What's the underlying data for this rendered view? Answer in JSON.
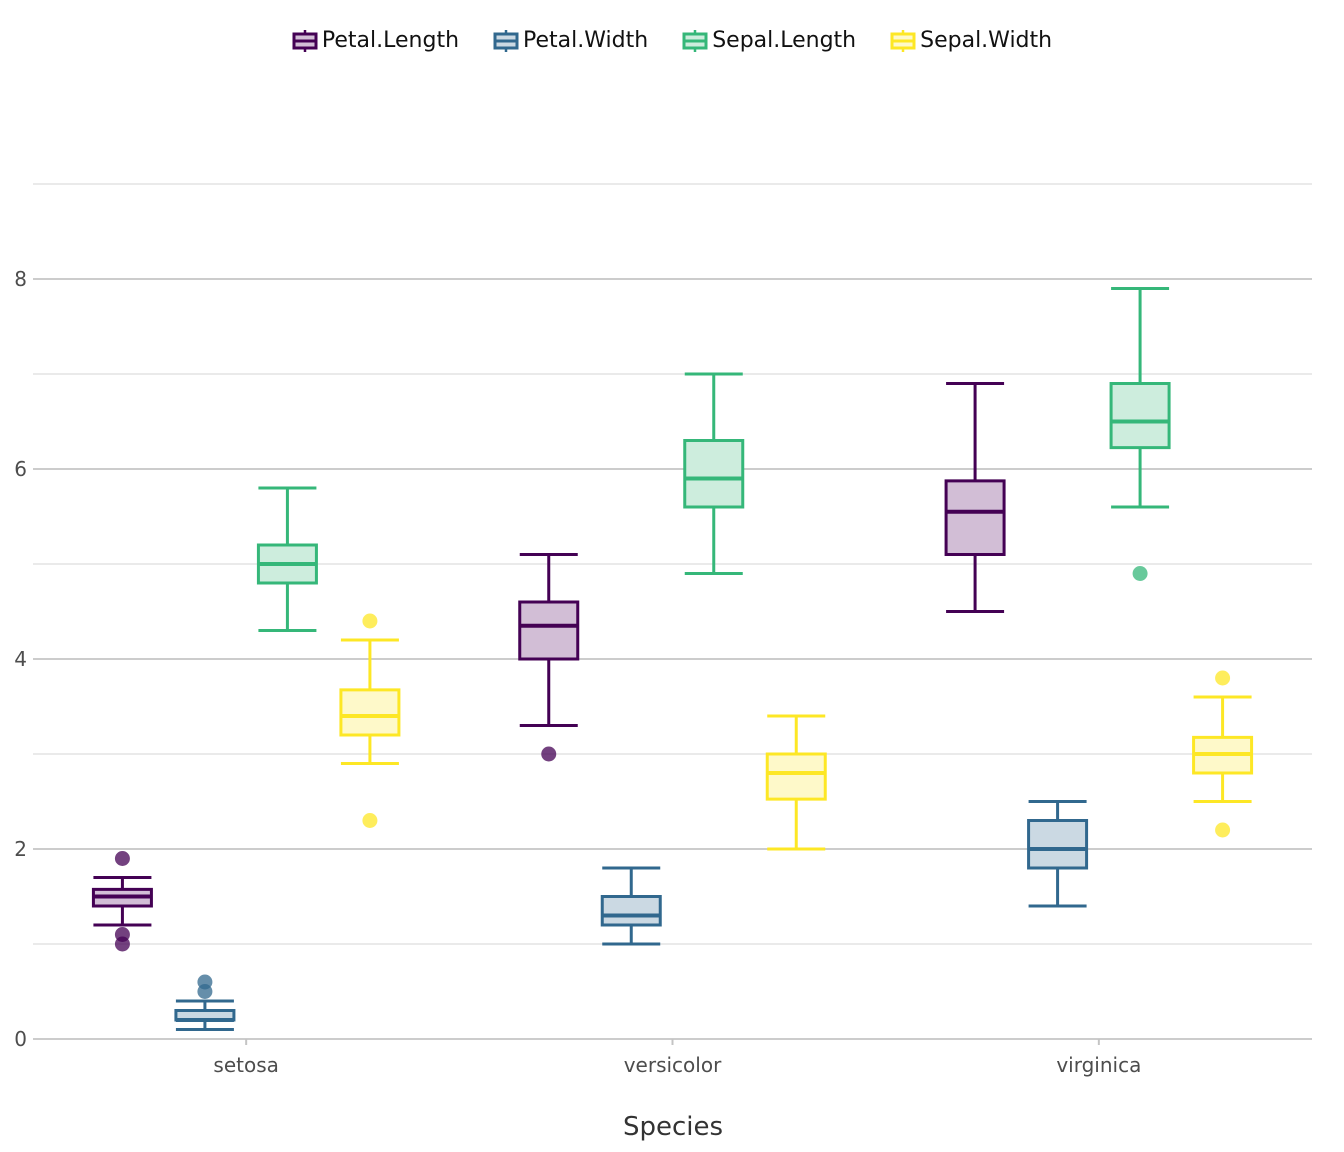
{
  "chart_data": {
    "type": "boxplot",
    "title": "",
    "xlabel": "Species",
    "ylabel": "",
    "ylim": [
      0,
      9
    ],
    "y_ticks": [
      0,
      2,
      4,
      6,
      8
    ],
    "y_tick_labels": [
      "0",
      "2",
      "4",
      "6",
      "8"
    ],
    "grid": true,
    "legend_position": "top",
    "categories": [
      "setosa",
      "versicolor",
      "virginica"
    ],
    "series": [
      {
        "name": "Petal.Length",
        "color": "#440154",
        "fill": "#d2bed6",
        "boxes": [
          {
            "min": 1.2,
            "q1": 1.4,
            "median": 1.5,
            "q3": 1.575,
            "max": 1.7,
            "outliers": [
              1.9,
              1.1,
              1.0
            ]
          },
          {
            "min": 3.3,
            "q1": 4.0,
            "median": 4.35,
            "q3": 4.6,
            "max": 5.1,
            "outliers": [
              3.0
            ]
          },
          {
            "min": 4.5,
            "q1": 5.1,
            "median": 5.55,
            "q3": 5.875,
            "max": 6.9,
            "outliers": []
          }
        ]
      },
      {
        "name": "Petal.Width",
        "color": "#31688e",
        "fill": "#cbd9e3",
        "boxes": [
          {
            "min": 0.1,
            "q1": 0.2,
            "median": 0.2,
            "q3": 0.3,
            "max": 0.4,
            "outliers": [
              0.5,
              0.6
            ]
          },
          {
            "min": 1.0,
            "q1": 1.2,
            "median": 1.3,
            "q3": 1.5,
            "max": 1.8,
            "outliers": []
          },
          {
            "min": 1.4,
            "q1": 1.8,
            "median": 2.0,
            "q3": 2.3,
            "max": 2.5,
            "outliers": []
          }
        ]
      },
      {
        "name": "Sepal.Length",
        "color": "#35b779",
        "fill": "#cdeddd",
        "boxes": [
          {
            "min": 4.3,
            "q1": 4.8,
            "median": 5.0,
            "q3": 5.2,
            "max": 5.8,
            "outliers": []
          },
          {
            "min": 4.9,
            "q1": 5.6,
            "median": 5.9,
            "q3": 6.3,
            "max": 7.0,
            "outliers": []
          },
          {
            "min": 5.6,
            "q1": 6.225,
            "median": 6.5,
            "q3": 6.9,
            "max": 7.9,
            "outliers": [
              4.9
            ]
          }
        ]
      },
      {
        "name": "Sepal.Width",
        "color": "#fde725",
        "fill": "#fef9c9",
        "boxes": [
          {
            "min": 2.9,
            "q1": 3.2,
            "median": 3.4,
            "q3": 3.675,
            "max": 4.2,
            "outliers": [
              4.4,
              2.3
            ]
          },
          {
            "min": 2.0,
            "q1": 2.525,
            "median": 2.8,
            "q3": 3.0,
            "max": 3.4,
            "outliers": []
          },
          {
            "min": 2.5,
            "q1": 2.8,
            "median": 3.0,
            "q3": 3.175,
            "max": 3.6,
            "outliers": [
              3.8,
              2.2
            ]
          }
        ]
      }
    ]
  }
}
